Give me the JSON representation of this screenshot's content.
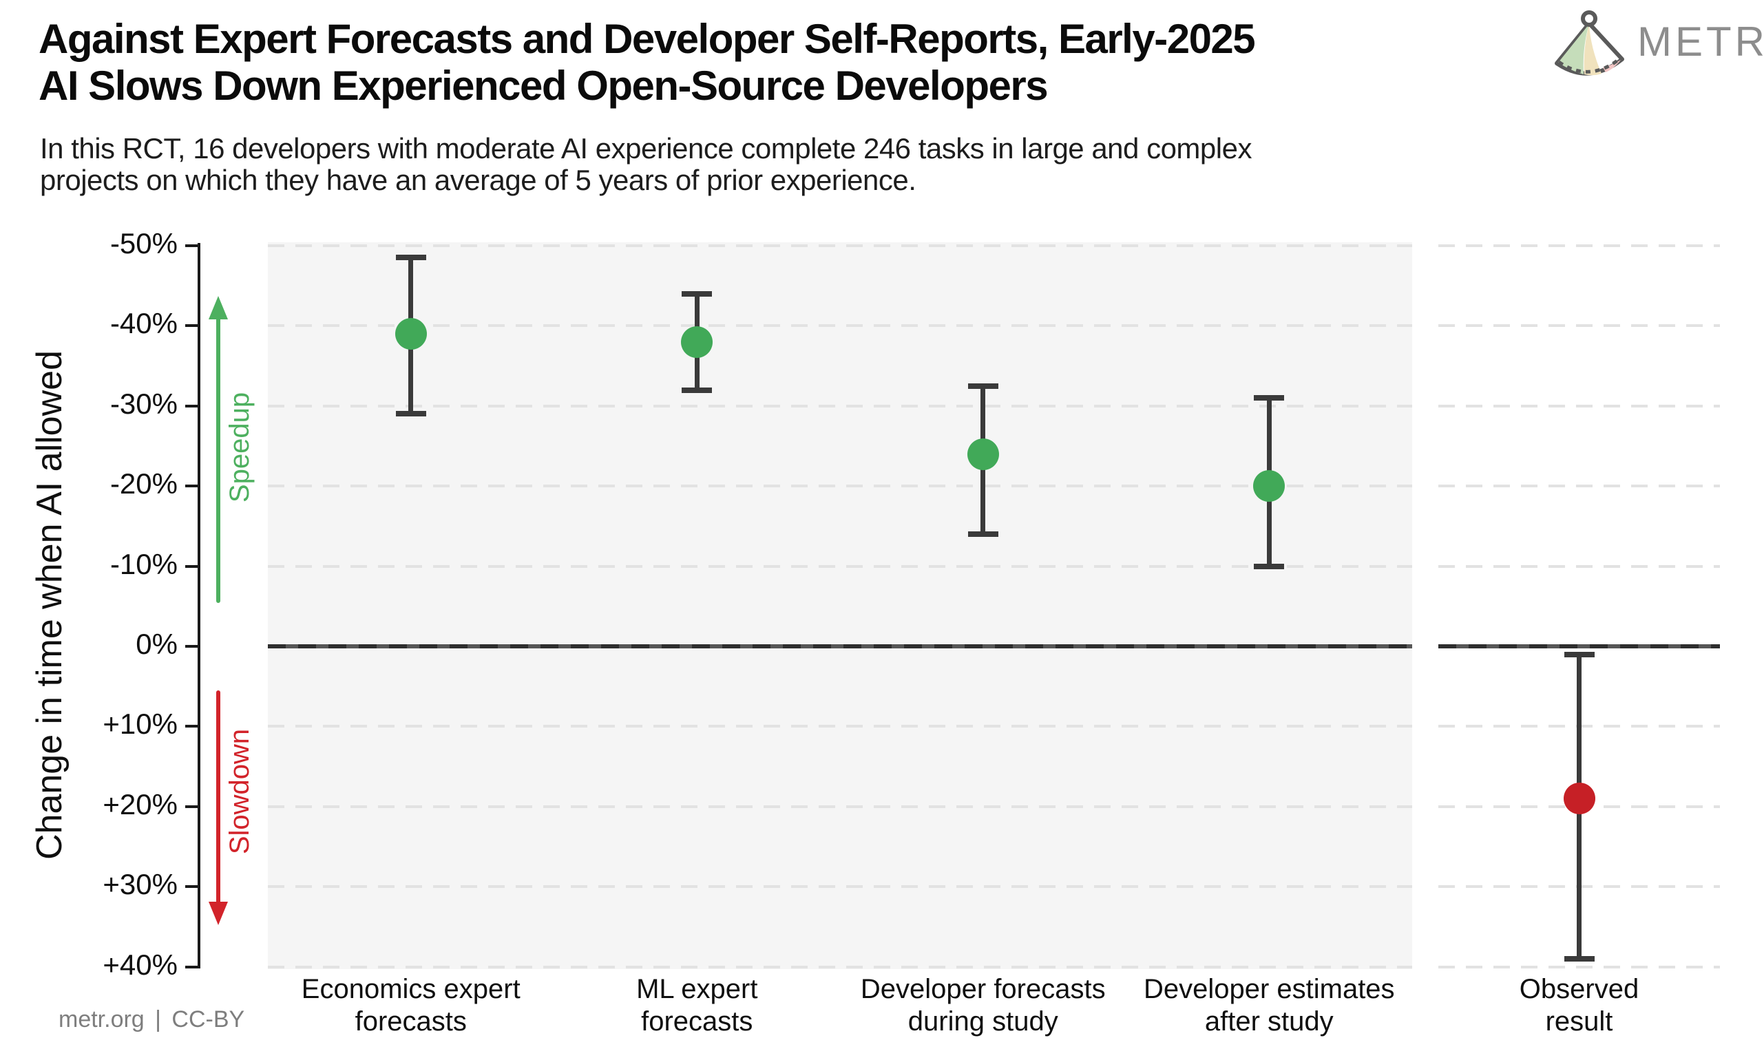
{
  "header": {
    "title_line1": "Against Expert Forecasts and Developer Self-Reports, Early-2025",
    "title_line2": "AI Slows Down Experienced Open-Source Developers",
    "subtitle_line1": "In this RCT, 16 developers with moderate AI experience complete 246 tasks in large and complex",
    "subtitle_line2": "projects on which they have an average of 5 years of prior experience.",
    "logo_text": "METR"
  },
  "footer": {
    "credit": "metr.org  |  CC-BY"
  },
  "axis": {
    "y_title": "Change in time when AI allowed",
    "speedup_label": "Speedup",
    "slowdown_label": "Slowdown",
    "tick_values": [
      -50,
      -40,
      -30,
      -20,
      -10,
      0,
      10,
      20,
      30,
      40
    ],
    "tick_labels": [
      "-50%",
      "-40%",
      "-30%",
      "-20%",
      "-10%",
      "0%",
      "+10%",
      "+20%",
      "+30%",
      "+40%"
    ]
  },
  "colors": {
    "point_green": "#41a958",
    "point_red": "#c62026",
    "arrow_green": "#4db05f",
    "arrow_red": "#d2232a",
    "error_bar": "#3a3a3a",
    "panel_bg": "#f5f5f5",
    "grid": "#e2e2e2",
    "zero_line": "#3f3f3f",
    "logo_gray": "#8d8d8d"
  },
  "chart_data": {
    "type": "scatter",
    "subtype": "point-estimates-with-error-bars",
    "title": "Against Expert Forecasts and Developer Self-Reports, Early-2025 AI Slows Down Experienced Open-Source Developers",
    "ylabel": "Change in time when AI allowed",
    "y_unit": "percent",
    "ylim_top_to_bottom": [
      -50,
      40
    ],
    "grid": "horizontal dashed",
    "zero_reference_line": true,
    "annotations": [
      {
        "text": "Speedup",
        "direction": "up",
        "color": "#4db05f"
      },
      {
        "text": "Slowdown",
        "direction": "down",
        "color": "#d2232a"
      }
    ],
    "panels": [
      {
        "name": "forecasts",
        "point_color": "#41a958",
        "points": [
          {
            "label_lines": [
              "Economics expert",
              "forecasts"
            ],
            "category": "Economics expert forecasts",
            "value": -39,
            "ci": [
              -48.5,
              -29
            ]
          },
          {
            "label_lines": [
              "ML expert",
              "forecasts"
            ],
            "category": "ML expert forecasts",
            "value": -38,
            "ci": [
              -44,
              -32
            ]
          },
          {
            "label_lines": [
              "Developer forecasts",
              "during study"
            ],
            "category": "Developer forecasts during study",
            "value": -24,
            "ci": [
              -32.5,
              -14
            ]
          },
          {
            "label_lines": [
              "Developer estimates",
              "after study"
            ],
            "category": "Developer estimates after study",
            "value": -20,
            "ci": [
              -31,
              -10
            ]
          }
        ]
      },
      {
        "name": "observed",
        "point_color": "#c62026",
        "points": [
          {
            "label_lines": [
              "Observed",
              "result"
            ],
            "category": "Observed result",
            "value": 19,
            "ci": [
              1,
              39
            ]
          }
        ]
      }
    ]
  }
}
